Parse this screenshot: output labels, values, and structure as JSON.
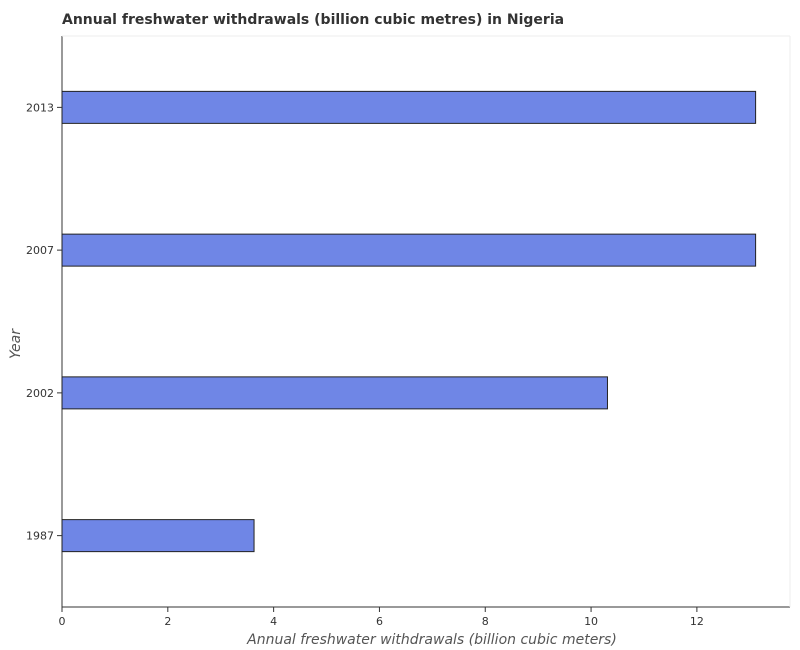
{
  "chart_data": {
    "type": "bar",
    "orientation": "horizontal",
    "title": "Annual freshwater withdrawals (billion cubic metres) in Nigeria",
    "xlabel": "Annual freshwater withdrawals (billion cubic meters)",
    "ylabel": "Year",
    "categories": [
      "1987",
      "2002",
      "2007",
      "2013"
    ],
    "values": [
      3.63,
      10.31,
      13.11,
      13.11
    ],
    "xlim": [
      0,
      13.76
    ],
    "xticks": [
      "0",
      "2",
      "4",
      "6",
      "8",
      "10",
      "12"
    ],
    "bar_color": "#6f86e6",
    "bar_edge_color": "#222222",
    "grid": false
  }
}
